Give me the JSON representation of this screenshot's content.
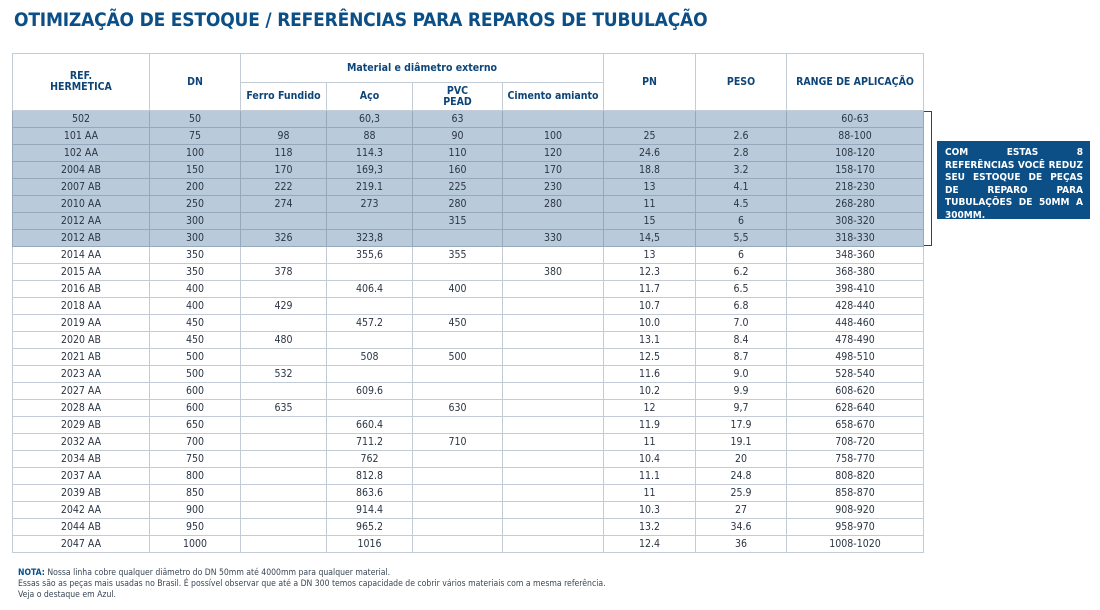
{
  "title": "OTIMIZAÇÃO DE ESTOQUE / REFERÊNCIAS PARA REPAROS DE TUBULAÇÃO",
  "colors": {
    "accent": "#0b4f86",
    "highlight_row": "#b9cada",
    "border": "#c3ccd6"
  },
  "table": {
    "headers": {
      "ref_line1": "REF.",
      "ref_line2": "HERMETICA",
      "dn": "DN",
      "material_group": "Material e diâmetro externo",
      "ferro": "Ferro Fundido",
      "aco": "Aço",
      "pvc_line1": "PVC",
      "pvc_line2": "PEAD",
      "cimento": "Cimento amianto",
      "pn": "PN",
      "peso": "PESO",
      "range": "RANGE DE APLICAÇÃO"
    },
    "highlighted_rows": 8,
    "rows": [
      [
        "502",
        "50",
        "",
        "60,3",
        "63",
        "",
        "",
        "",
        "60-63"
      ],
      [
        "101 AA",
        "75",
        "98",
        "88",
        "90",
        "100",
        "25",
        "2.6",
        "88-100"
      ],
      [
        "102 AA",
        "100",
        "118",
        "114.3",
        "110",
        "120",
        "24.6",
        "2.8",
        "108-120"
      ],
      [
        "2004 AB",
        "150",
        "170",
        "169,3",
        "160",
        "170",
        "18.8",
        "3.2",
        "158-170"
      ],
      [
        "2007 AB",
        "200",
        "222",
        "219.1",
        "225",
        "230",
        "13",
        "4.1",
        "218-230"
      ],
      [
        "2010 AA",
        "250",
        "274",
        "273",
        "280",
        "280",
        "11",
        "4.5",
        "268-280"
      ],
      [
        "2012 AA",
        "300",
        "",
        "",
        "315",
        "",
        "15",
        "6",
        "308-320"
      ],
      [
        "2012 AB",
        "300",
        "326",
        "323,8",
        "",
        "330",
        "14,5",
        "5,5",
        "318-330"
      ],
      [
        "2014 AA",
        "350",
        "",
        "355,6",
        "355",
        "",
        "13",
        "6",
        "348-360"
      ],
      [
        "2015 AA",
        "350",
        "378",
        "",
        "",
        "380",
        "12.3",
        "6.2",
        "368-380"
      ],
      [
        "2016 AB",
        "400",
        "",
        "406.4",
        "400",
        "",
        "11.7",
        "6.5",
        "398-410"
      ],
      [
        "2018 AA",
        "400",
        "429",
        "",
        "",
        "",
        "10.7",
        "6.8",
        "428-440"
      ],
      [
        "2019 AA",
        "450",
        "",
        "457.2",
        "450",
        "",
        "10.0",
        "7.0",
        "448-460"
      ],
      [
        "2020 AB",
        "450",
        "480",
        "",
        "",
        "",
        "13.1",
        "8.4",
        "478-490"
      ],
      [
        "2021 AB",
        "500",
        "",
        "508",
        "500",
        "",
        "12.5",
        "8.7",
        "498-510"
      ],
      [
        "2023 AA",
        "500",
        "532",
        "",
        "",
        "",
        "11.6",
        "9.0",
        "528-540"
      ],
      [
        "2027 AA",
        "600",
        "",
        "609.6",
        "",
        "",
        "10.2",
        "9.9",
        "608-620"
      ],
      [
        "2028 AA",
        "600",
        "635",
        "",
        "630",
        "",
        "12",
        "9,7",
        "628-640"
      ],
      [
        "2029 AB",
        "650",
        "",
        "660.4",
        "",
        "",
        "11.9",
        "17.9",
        "658-670"
      ],
      [
        "2032 AA",
        "700",
        "",
        "711.2",
        "710",
        "",
        "11",
        "19.1",
        "708-720"
      ],
      [
        "2034 AB",
        "750",
        "",
        "762",
        "",
        "",
        "10.4",
        "20",
        "758-770"
      ],
      [
        "2037 AA",
        "800",
        "",
        "812.8",
        "",
        "",
        "11.1",
        "24.8",
        "808-820"
      ],
      [
        "2039 AB",
        "850",
        "",
        "863.6",
        "",
        "",
        "11",
        "25.9",
        "858-870"
      ],
      [
        "2042 AA",
        "900",
        "",
        "914.4",
        "",
        "",
        "10.3",
        "27",
        "908-920"
      ],
      [
        "2044 AB",
        "950",
        "",
        "965.2",
        "",
        "",
        "13.2",
        "34.6",
        "958-970"
      ],
      [
        "2047 AA",
        "1000",
        "",
        "1016",
        "",
        "",
        "12.4",
        "36",
        "1008-1020"
      ]
    ]
  },
  "callout": {
    "text": "COM ESTAS 8 REFERÊNCIAS VOCÊ REDUZ SEU ESTOQUE DE PEÇAS DE REPARO PARA TUBULAÇÕES DE 50MM A 300MM."
  },
  "notes": {
    "label": "NOTA:",
    "line1": " Nossa linha cobre qualquer diâmetro do DN 50mm até 4000mm para qualquer material.",
    "line2": "Essas são as peças mais usadas no Brasil. É possível observar que até a DN 300 temos capacidade de cobrir vários materiais com a mesma referência.",
    "line3": "Veja o destaque em Azul."
  }
}
